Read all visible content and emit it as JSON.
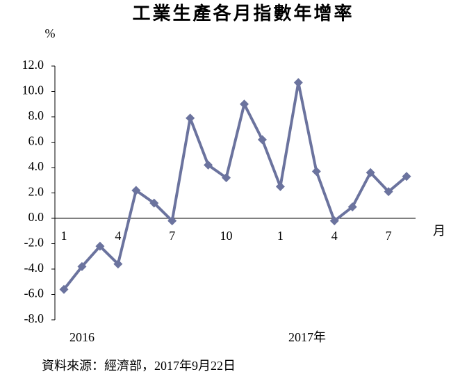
{
  "chart_data": {
    "type": "line",
    "title": "工業生產各月指數年增率",
    "y_label": "%",
    "x_label": "月",
    "annotations": [
      "2016",
      "2017年"
    ],
    "source": "資料來源：經濟部，2017年9月22日",
    "categories": [
      "1",
      null,
      null,
      "4",
      null,
      null,
      "7",
      null,
      null,
      "10",
      null,
      null,
      "1",
      null,
      null,
      "4",
      null,
      null,
      "7",
      null
    ],
    "series": [
      {
        "color": "#6b739e",
        "values": [
          -5.6,
          -3.8,
          -2.2,
          -3.6,
          2.2,
          1.2,
          -0.2,
          7.9,
          4.2,
          3.2,
          9.0,
          6.2,
          2.5,
          10.7,
          3.7,
          -0.2,
          0.9,
          3.6,
          2.1,
          3.3
        ]
      }
    ],
    "ylim": [
      -8,
      12
    ],
    "yticks": [
      {
        "value": -8,
        "label": "-8.0"
      },
      {
        "value": -6,
        "label": "-6.0"
      },
      {
        "value": -4,
        "label": "-4.0"
      },
      {
        "value": -2,
        "label": "-2.0"
      },
      {
        "value": 0,
        "label": "0.0"
      },
      {
        "value": 2,
        "label": "2.0"
      },
      {
        "value": 4,
        "label": "4.0"
      },
      {
        "value": 6,
        "label": "6.0"
      },
      {
        "value": 8,
        "label": "8.0"
      },
      {
        "value": 10,
        "label": "10.0"
      },
      {
        "value": 12,
        "label": "12.0"
      }
    ]
  }
}
